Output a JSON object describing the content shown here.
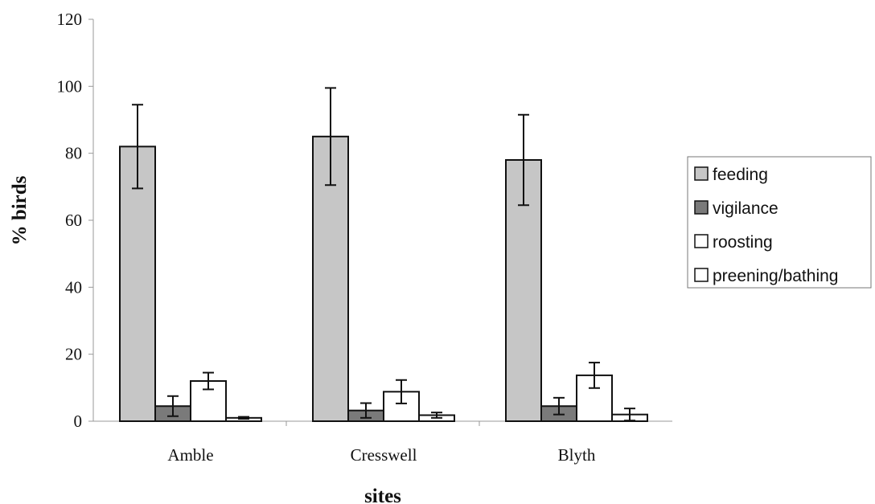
{
  "chart_data": {
    "type": "bar",
    "title": "",
    "xlabel": "sites",
    "ylabel": "% birds",
    "ylim": [
      0,
      120
    ],
    "yticks": [
      0,
      20,
      40,
      60,
      80,
      100,
      120
    ],
    "categories": [
      "Amble",
      "Cresswell",
      "Blyth"
    ],
    "grid": false,
    "legend_position": "right",
    "series": [
      {
        "name": "feeding",
        "color": "#c6c6c6",
        "values": [
          82,
          85,
          78
        ],
        "errors": [
          12.5,
          14.5,
          13.5
        ]
      },
      {
        "name": "vigilance",
        "color": "#7a7a7a",
        "values": [
          4.5,
          3.2,
          4.5
        ],
        "errors": [
          3.0,
          2.2,
          2.5
        ]
      },
      {
        "name": "roosting",
        "color": "#ffffff",
        "values": [
          12,
          8.8,
          13.7
        ],
        "errors": [
          2.5,
          3.5,
          3.8
        ]
      },
      {
        "name": "preening/bathing",
        "color": "#ffffff",
        "values": [
          1.0,
          1.8,
          2.0
        ],
        "errors": [
          0.3,
          0.8,
          1.8
        ]
      }
    ]
  }
}
